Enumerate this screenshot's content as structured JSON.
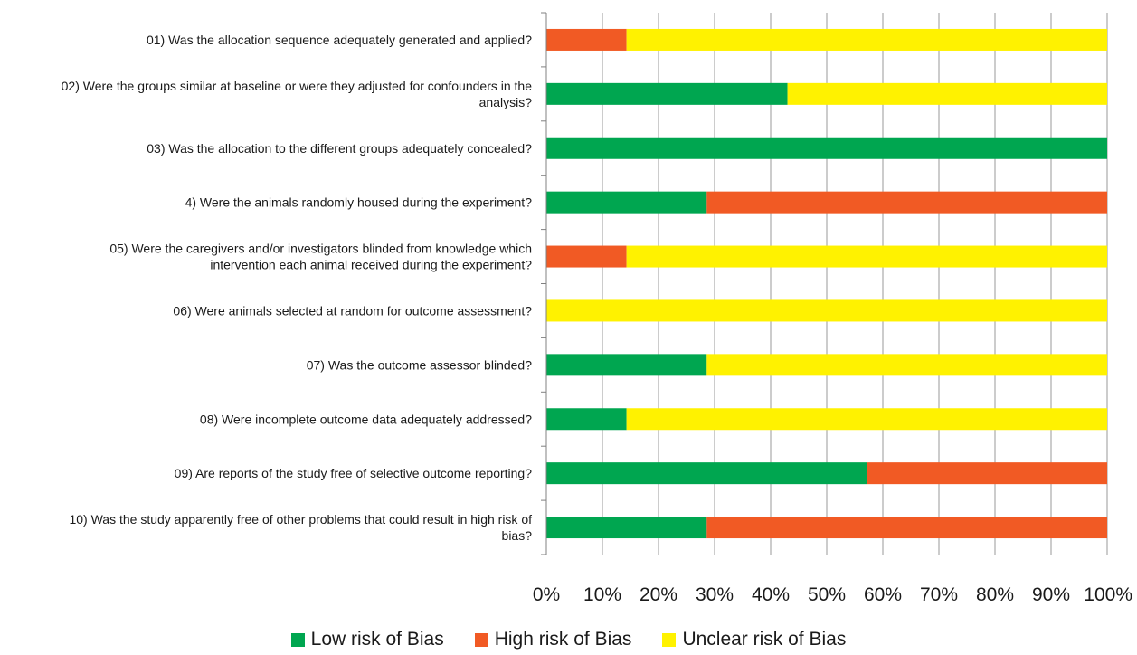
{
  "chart_data": {
    "type": "bar",
    "orientation": "horizontal",
    "stacked": true,
    "categories": [
      "01)  Was the allocation sequence adequately generated and applied?",
      "02) Were the groups similar at baseline or were they adjusted for confounders in the analysis?",
      "03) Was the allocation to the different groups adequately concealed?",
      "4) Were the animals randomly housed during the experiment?",
      "05) Were the caregivers and/or investigators blinded from knowledge which intervention each animal received during the experiment?",
      "06) Were animals selected at random for outcome assessment?",
      "07) Was the outcome assessor blinded?",
      "08) Were incomplete outcome data adequately addressed?",
      "09) Are reports of the study free of selective outcome reporting?",
      "10) Was the study apparently free of other problems that could result in high risk of bias?"
    ],
    "category_lines": [
      [
        "01)  Was the allocation sequence adequately generated and applied?"
      ],
      [
        "02) Were the groups similar at baseline or were they adjusted for confounders in the",
        "analysis?"
      ],
      [
        "03) Was the allocation to the different groups adequately concealed?"
      ],
      [
        "4) Were the animals randomly housed during the experiment?"
      ],
      [
        "05) Were the caregivers and/or investigators blinded from knowledge which",
        "intervention each animal received during the experiment?"
      ],
      [
        "06) Were animals selected at random for outcome assessment?"
      ],
      [
        "07) Was the outcome assessor blinded?"
      ],
      [
        "08) Were incomplete outcome data adequately addressed?"
      ],
      [
        "09) Are reports of the study free of selective outcome reporting?"
      ],
      [
        "10) Was the study apparently free of other problems that could result in high risk of",
        "bias?"
      ]
    ],
    "series": [
      {
        "name": "Low risk of Bias",
        "color": "#00a650",
        "values": [
          0,
          43,
          100,
          28.6,
          0,
          0,
          28.6,
          14.3,
          57.1,
          28.6
        ]
      },
      {
        "name": "High risk of Bias",
        "color": "#f15a24",
        "values": [
          14.3,
          0,
          0,
          71.4,
          14.3,
          0,
          0,
          0,
          42.9,
          71.4
        ]
      },
      {
        "name": "Unclear risk of Bias",
        "color": "#fff200",
        "values": [
          85.7,
          57,
          0,
          0,
          85.7,
          100,
          71.4,
          85.7,
          0,
          0
        ]
      }
    ],
    "xlim": [
      0,
      100
    ],
    "xticks": [
      "0%",
      "10%",
      "20%",
      "30%",
      "40%",
      "50%",
      "60%",
      "70%",
      "80%",
      "90%",
      "100%"
    ],
    "grid": true,
    "legend_position": "bottom"
  }
}
